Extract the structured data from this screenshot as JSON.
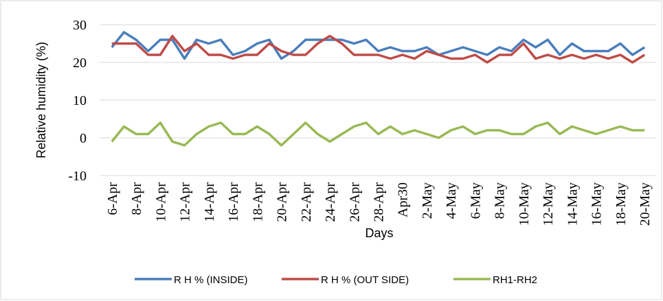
{
  "chart_data": {
    "type": "line",
    "x_label": "Days",
    "y_label": "Relative humidity (%)",
    "categories": [
      "6-Apr",
      null,
      "8-Apr",
      null,
      "10-Apr",
      null,
      "12-Apr",
      null,
      "14-Apr",
      null,
      "16-Apr",
      null,
      "18-Apr",
      null,
      "20-Apr",
      null,
      "22-Apr",
      null,
      "24-Apr",
      null,
      "26-Apr",
      null,
      "28-Apr",
      null,
      "Apr30",
      null,
      "2-May",
      null,
      "4-May",
      null,
      "6-May",
      null,
      "8-May",
      null,
      "10-May",
      null,
      "12-May",
      null,
      "14-May",
      null,
      "16-May",
      null,
      "18-May",
      null,
      "20-May"
    ],
    "series": [
      {
        "name": "R H % (INSIDE)",
        "color": "#4a7ebb",
        "values": [
          24,
          28,
          26,
          23,
          26,
          26,
          21,
          26,
          25,
          26,
          22,
          23,
          25,
          26,
          21,
          23,
          26,
          26,
          26,
          26,
          25,
          26,
          23,
          24,
          23,
          23,
          24,
          22,
          23,
          24,
          23,
          22,
          24,
          23,
          26,
          24,
          26,
          22,
          25,
          23,
          23,
          23,
          25,
          22,
          24
        ]
      },
      {
        "name": "R H % (OUT SIDE)",
        "color": "#be4b48",
        "values": [
          25,
          25,
          25,
          22,
          22,
          27,
          23,
          25,
          22,
          22,
          21,
          22,
          22,
          25,
          23,
          22,
          22,
          25,
          27,
          25,
          22,
          22,
          22,
          21,
          22,
          21,
          23,
          22,
          21,
          21,
          22,
          20,
          22,
          22,
          25,
          21,
          22,
          21,
          22,
          21,
          22,
          21,
          22,
          20,
          22
        ]
      },
      {
        "name": "RH1-RH2",
        "color": "#98b954",
        "values": [
          -1,
          3,
          1,
          1,
          4,
          -1,
          -2,
          1,
          3,
          4,
          1,
          1,
          3,
          1,
          -2,
          1,
          4,
          1,
          -1,
          1,
          3,
          4,
          1,
          3,
          1,
          2,
          1,
          0,
          2,
          3,
          1,
          2,
          2,
          1,
          1,
          3,
          4,
          1,
          3,
          2,
          1,
          2,
          3,
          2,
          2
        ]
      }
    ],
    "ylim": [
      -10,
      30
    ],
    "yticks": [
      -10,
      0,
      10,
      20,
      30
    ],
    "grid": true,
    "legend": "bottom"
  }
}
